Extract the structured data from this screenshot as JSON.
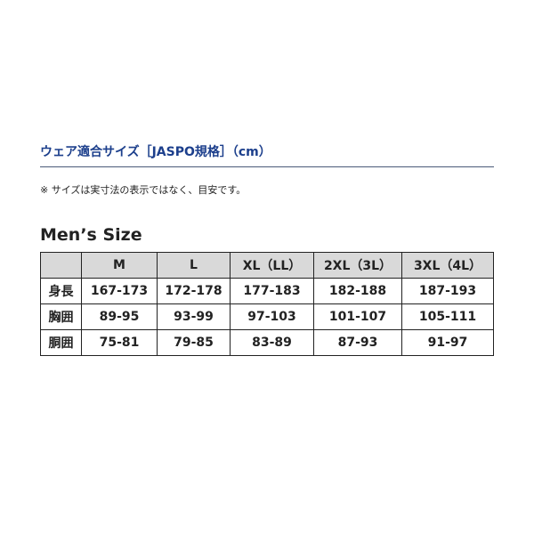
{
  "title": "ウェア適合サイズ［JASPO規格］（cm）",
  "note": "※ サイズは実寸法の表示ではなく、目安です。",
  "heading": "Men’s Size",
  "table": {
    "columns": [
      "",
      "M",
      "L",
      "XL（LL）",
      "2XL（3L）",
      "3XL（4L）"
    ],
    "rows": [
      {
        "label": "身長",
        "values": [
          "167-173",
          "172-178",
          "177-183",
          "182-188",
          "187-193"
        ]
      },
      {
        "label": "胸囲",
        "values": [
          "89-95",
          "93-99",
          "97-103",
          "101-107",
          "105-111"
        ]
      },
      {
        "label": "胴囲",
        "values": [
          "75-81",
          "79-85",
          "83-89",
          "87-93",
          "91-97"
        ]
      }
    ]
  }
}
